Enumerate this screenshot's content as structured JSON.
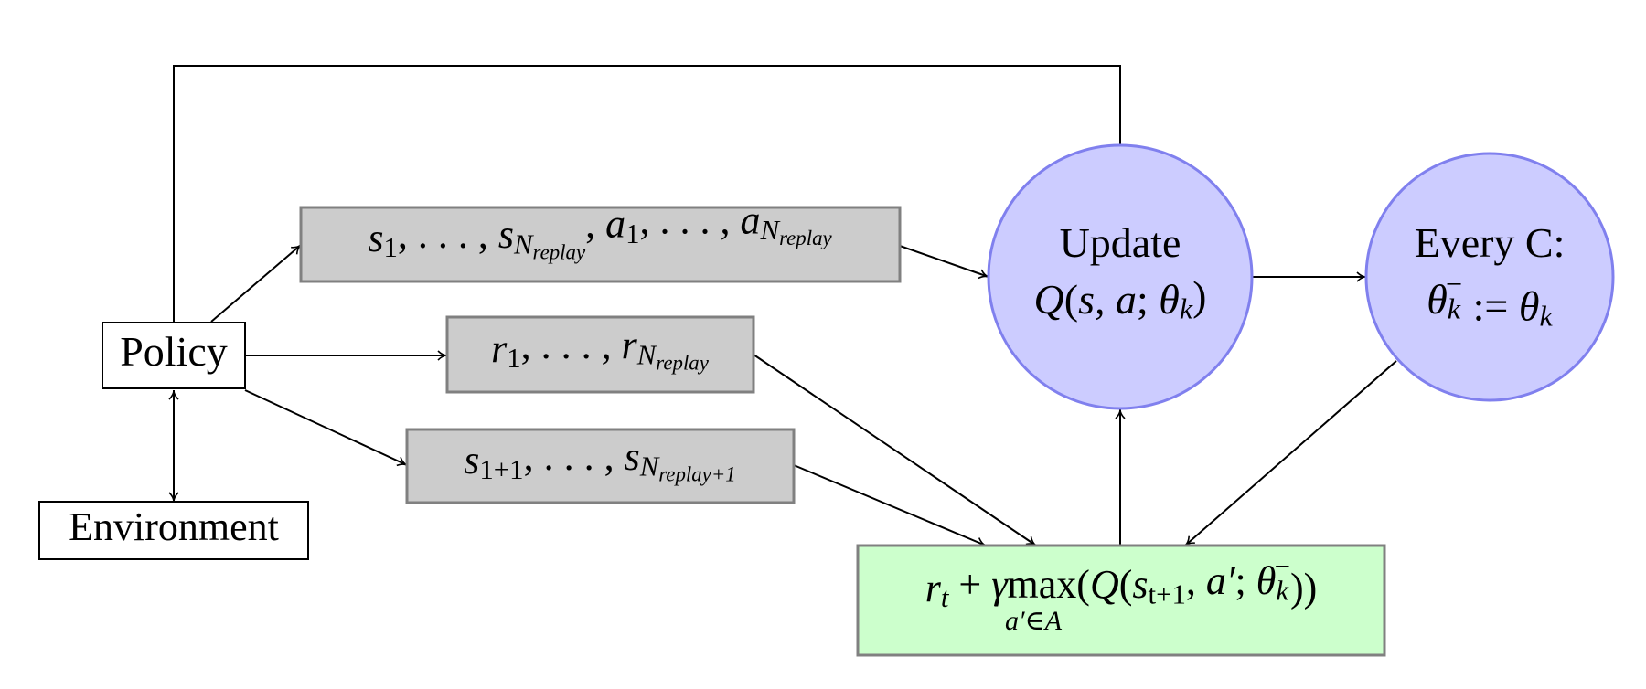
{
  "nodes": [
    {
      "label": [
        {
          "rm": "Policy"
        }
      ]
    },
    {
      "label": [
        {
          "rm": "Environment"
        }
      ]
    },
    {
      "label": [
        {
          "t": "s"
        },
        {
          "sub": "1"
        },
        {
          "rm": ", . . . , "
        },
        {
          "t": "s"
        },
        {
          "sub": "N"
        },
        {
          "subsub": "replay"
        },
        {
          "rm": ", "
        },
        {
          "t": "a"
        },
        {
          "sub": "1"
        },
        {
          "rm": ", . . . , "
        },
        {
          "t": "a"
        },
        {
          "sub": "N"
        },
        {
          "subsub": "replay"
        }
      ]
    },
    {
      "label": [
        {
          "t": "r"
        },
        {
          "sub": "1"
        },
        {
          "rm": ", . . . , "
        },
        {
          "t": "r"
        },
        {
          "sub": "N"
        },
        {
          "subsub": "replay"
        }
      ]
    },
    {
      "label": [
        {
          "t": "s"
        },
        {
          "sub": "1+1"
        },
        {
          "rm": ", . . . , "
        },
        {
          "t": "s"
        },
        {
          "sub": "N"
        },
        {
          "subsub": "replay+1"
        }
      ]
    },
    {
      "label": [
        {
          "rm": "Update"
        }
      ],
      "label2": [
        {
          "t": "Q"
        },
        {
          "rm": "("
        },
        {
          "t": "s, a"
        },
        {
          "rm": "; "
        },
        {
          "t": "θ"
        },
        {
          "sub": "k"
        },
        {
          "rm": ")"
        }
      ]
    },
    {
      "label": [
        {
          "rm": "Every C:"
        }
      ],
      "label2": [
        {
          "t": "θ"
        },
        {
          "sub": "k"
        },
        {
          "sup": "−"
        },
        {
          "rm": " := "
        },
        {
          "t": "θ"
        },
        {
          "sub": "k"
        }
      ]
    },
    {
      "label": [
        {
          "t": "r"
        },
        {
          "sub": "t"
        },
        {
          "rm": " + "
        },
        {
          "t": "γ"
        },
        {
          "rm": "max("
        },
        {
          "t": "Q"
        },
        {
          "rm": "("
        },
        {
          "t": "s"
        },
        {
          "sub": "t+1"
        },
        {
          "rm": ", "
        },
        {
          "t": "a′"
        },
        {
          "rm": "; "
        },
        {
          "t": "θ"
        },
        {
          "sub": "k"
        },
        {
          "sup": "−"
        },
        {
          "rm": "))"
        }
      ],
      "under": "a′∈A"
    }
  ]
}
